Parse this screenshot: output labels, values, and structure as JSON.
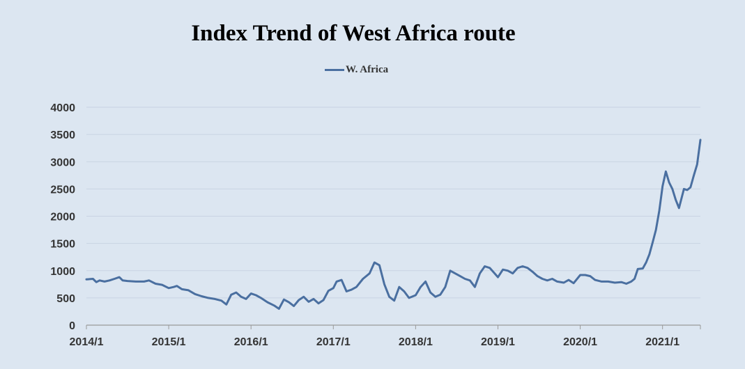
{
  "chart_data": {
    "type": "line",
    "title": "Index Trend of West Africa route",
    "legend_position": "top-center",
    "grid": true,
    "ylim": [
      0,
      4000
    ],
    "y_ticks": [
      "0",
      "500",
      "1000",
      "1500",
      "2000",
      "2500",
      "3000",
      "3500",
      "4000"
    ],
    "x_ticks": [
      "2014/1",
      "2015/1",
      "2016/1",
      "2017/1",
      "2018/1",
      "2019/1",
      "2020/1",
      "2021/1"
    ],
    "xlim": [
      2014.0,
      2021.46
    ],
    "series": [
      {
        "name": "W. Africa",
        "color": "#4a6fa0",
        "x": [
          2014.0,
          2014.08,
          2014.12,
          2014.16,
          2014.22,
          2014.28,
          2014.34,
          2014.4,
          2014.44,
          2014.5,
          2014.6,
          2014.7,
          2014.76,
          2014.84,
          2014.92,
          2015.0,
          2015.06,
          2015.1,
          2015.16,
          2015.24,
          2015.32,
          2015.4,
          2015.48,
          2015.56,
          2015.64,
          2015.7,
          2015.76,
          2015.82,
          2015.88,
          2015.94,
          2016.0,
          2016.06,
          2016.12,
          2016.2,
          2016.28,
          2016.34,
          2016.4,
          2016.46,
          2016.52,
          2016.58,
          2016.64,
          2016.7,
          2016.76,
          2016.82,
          2016.88,
          2016.94,
          2017.0,
          2017.04,
          2017.1,
          2017.16,
          2017.22,
          2017.28,
          2017.36,
          2017.44,
          2017.5,
          2017.56,
          2017.62,
          2017.68,
          2017.74,
          2017.8,
          2017.86,
          2017.92,
          2018.0,
          2018.06,
          2018.12,
          2018.18,
          2018.24,
          2018.3,
          2018.36,
          2018.42,
          2018.48,
          2018.54,
          2018.6,
          2018.66,
          2018.72,
          2018.78,
          2018.84,
          2018.9,
          2018.96,
          2019.0,
          2019.06,
          2019.12,
          2019.18,
          2019.24,
          2019.3,
          2019.36,
          2019.42,
          2019.48,
          2019.54,
          2019.6,
          2019.66,
          2019.72,
          2019.8,
          2019.86,
          2019.92,
          2020.0,
          2020.06,
          2020.12,
          2020.18,
          2020.26,
          2020.34,
          2020.42,
          2020.5,
          2020.56,
          2020.62,
          2020.66,
          2020.7,
          2020.76,
          2020.8,
          2020.84,
          2020.88,
          2020.92,
          2020.96,
          2021.0,
          2021.04,
          2021.08,
          2021.12,
          2021.16,
          2021.2,
          2021.26,
          2021.3,
          2021.34,
          2021.38,
          2021.42,
          2021.46
        ],
        "y": [
          840,
          850,
          790,
          820,
          800,
          820,
          850,
          880,
          820,
          810,
          800,
          800,
          820,
          760,
          740,
          680,
          700,
          720,
          660,
          640,
          570,
          530,
          500,
          480,
          450,
          380,
          560,
          600,
          520,
          480,
          580,
          550,
          500,
          420,
          360,
          300,
          470,
          420,
          350,
          460,
          520,
          430,
          480,
          400,
          460,
          630,
          680,
          800,
          830,
          620,
          650,
          700,
          850,
          950,
          1150,
          1100,
          750,
          520,
          450,
          700,
          620,
          500,
          550,
          700,
          800,
          600,
          520,
          560,
          700,
          1000,
          950,
          900,
          850,
          820,
          700,
          950,
          1080,
          1050,
          950,
          880,
          1020,
          1000,
          950,
          1050,
          1080,
          1050,
          980,
          900,
          850,
          820,
          850,
          800,
          780,
          830,
          770,
          920,
          920,
          900,
          830,
          800,
          800,
          780,
          790,
          760,
          800,
          850,
          1030,
          1040,
          1150,
          1300,
          1520,
          1750,
          2100,
          2550,
          2820,
          2620,
          2500,
          2300,
          2150,
          2500,
          2480,
          2530,
          2750,
          2950,
          3400
        ]
      }
    ]
  }
}
